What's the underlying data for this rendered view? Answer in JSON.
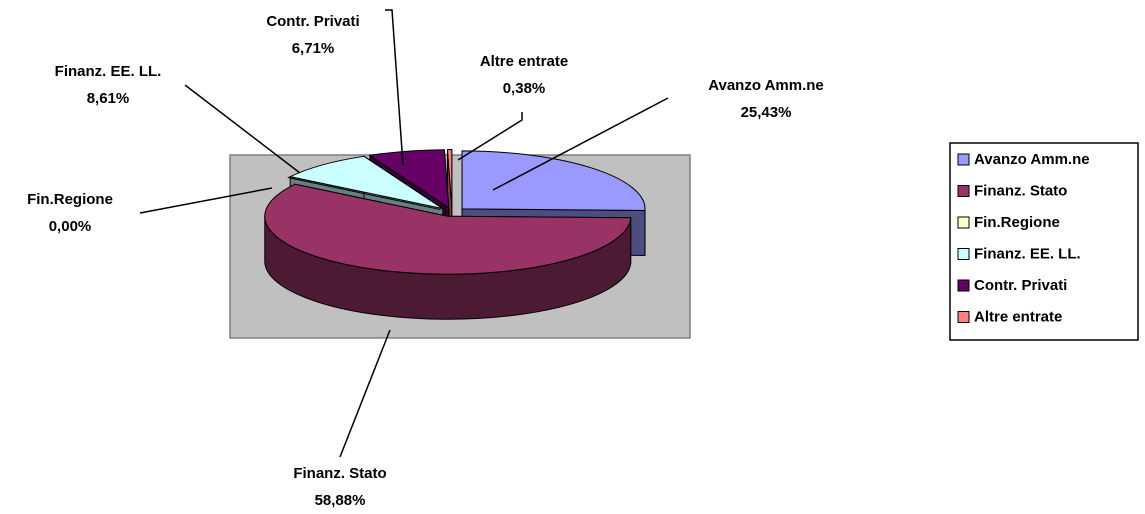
{
  "chart_data": {
    "type": "pie",
    "categories": [
      "Avanzo Amm.ne",
      "Finanz. Stato",
      "Fin.Regione",
      "Finanz. EE. LL.",
      "Contr. Privati",
      "Altre entrate"
    ],
    "values": [
      25.43,
      58.88,
      0.0,
      8.61,
      6.71,
      0.38
    ],
    "value_labels": [
      "25,43%",
      "58,88%",
      "0,00%",
      "8,61%",
      "6,71%",
      "0,38%"
    ],
    "colors": [
      "#9999ff",
      "#993366",
      "#ffffcc",
      "#ccffff",
      "#660066",
      "#ff8080"
    ],
    "legend": "right"
  }
}
